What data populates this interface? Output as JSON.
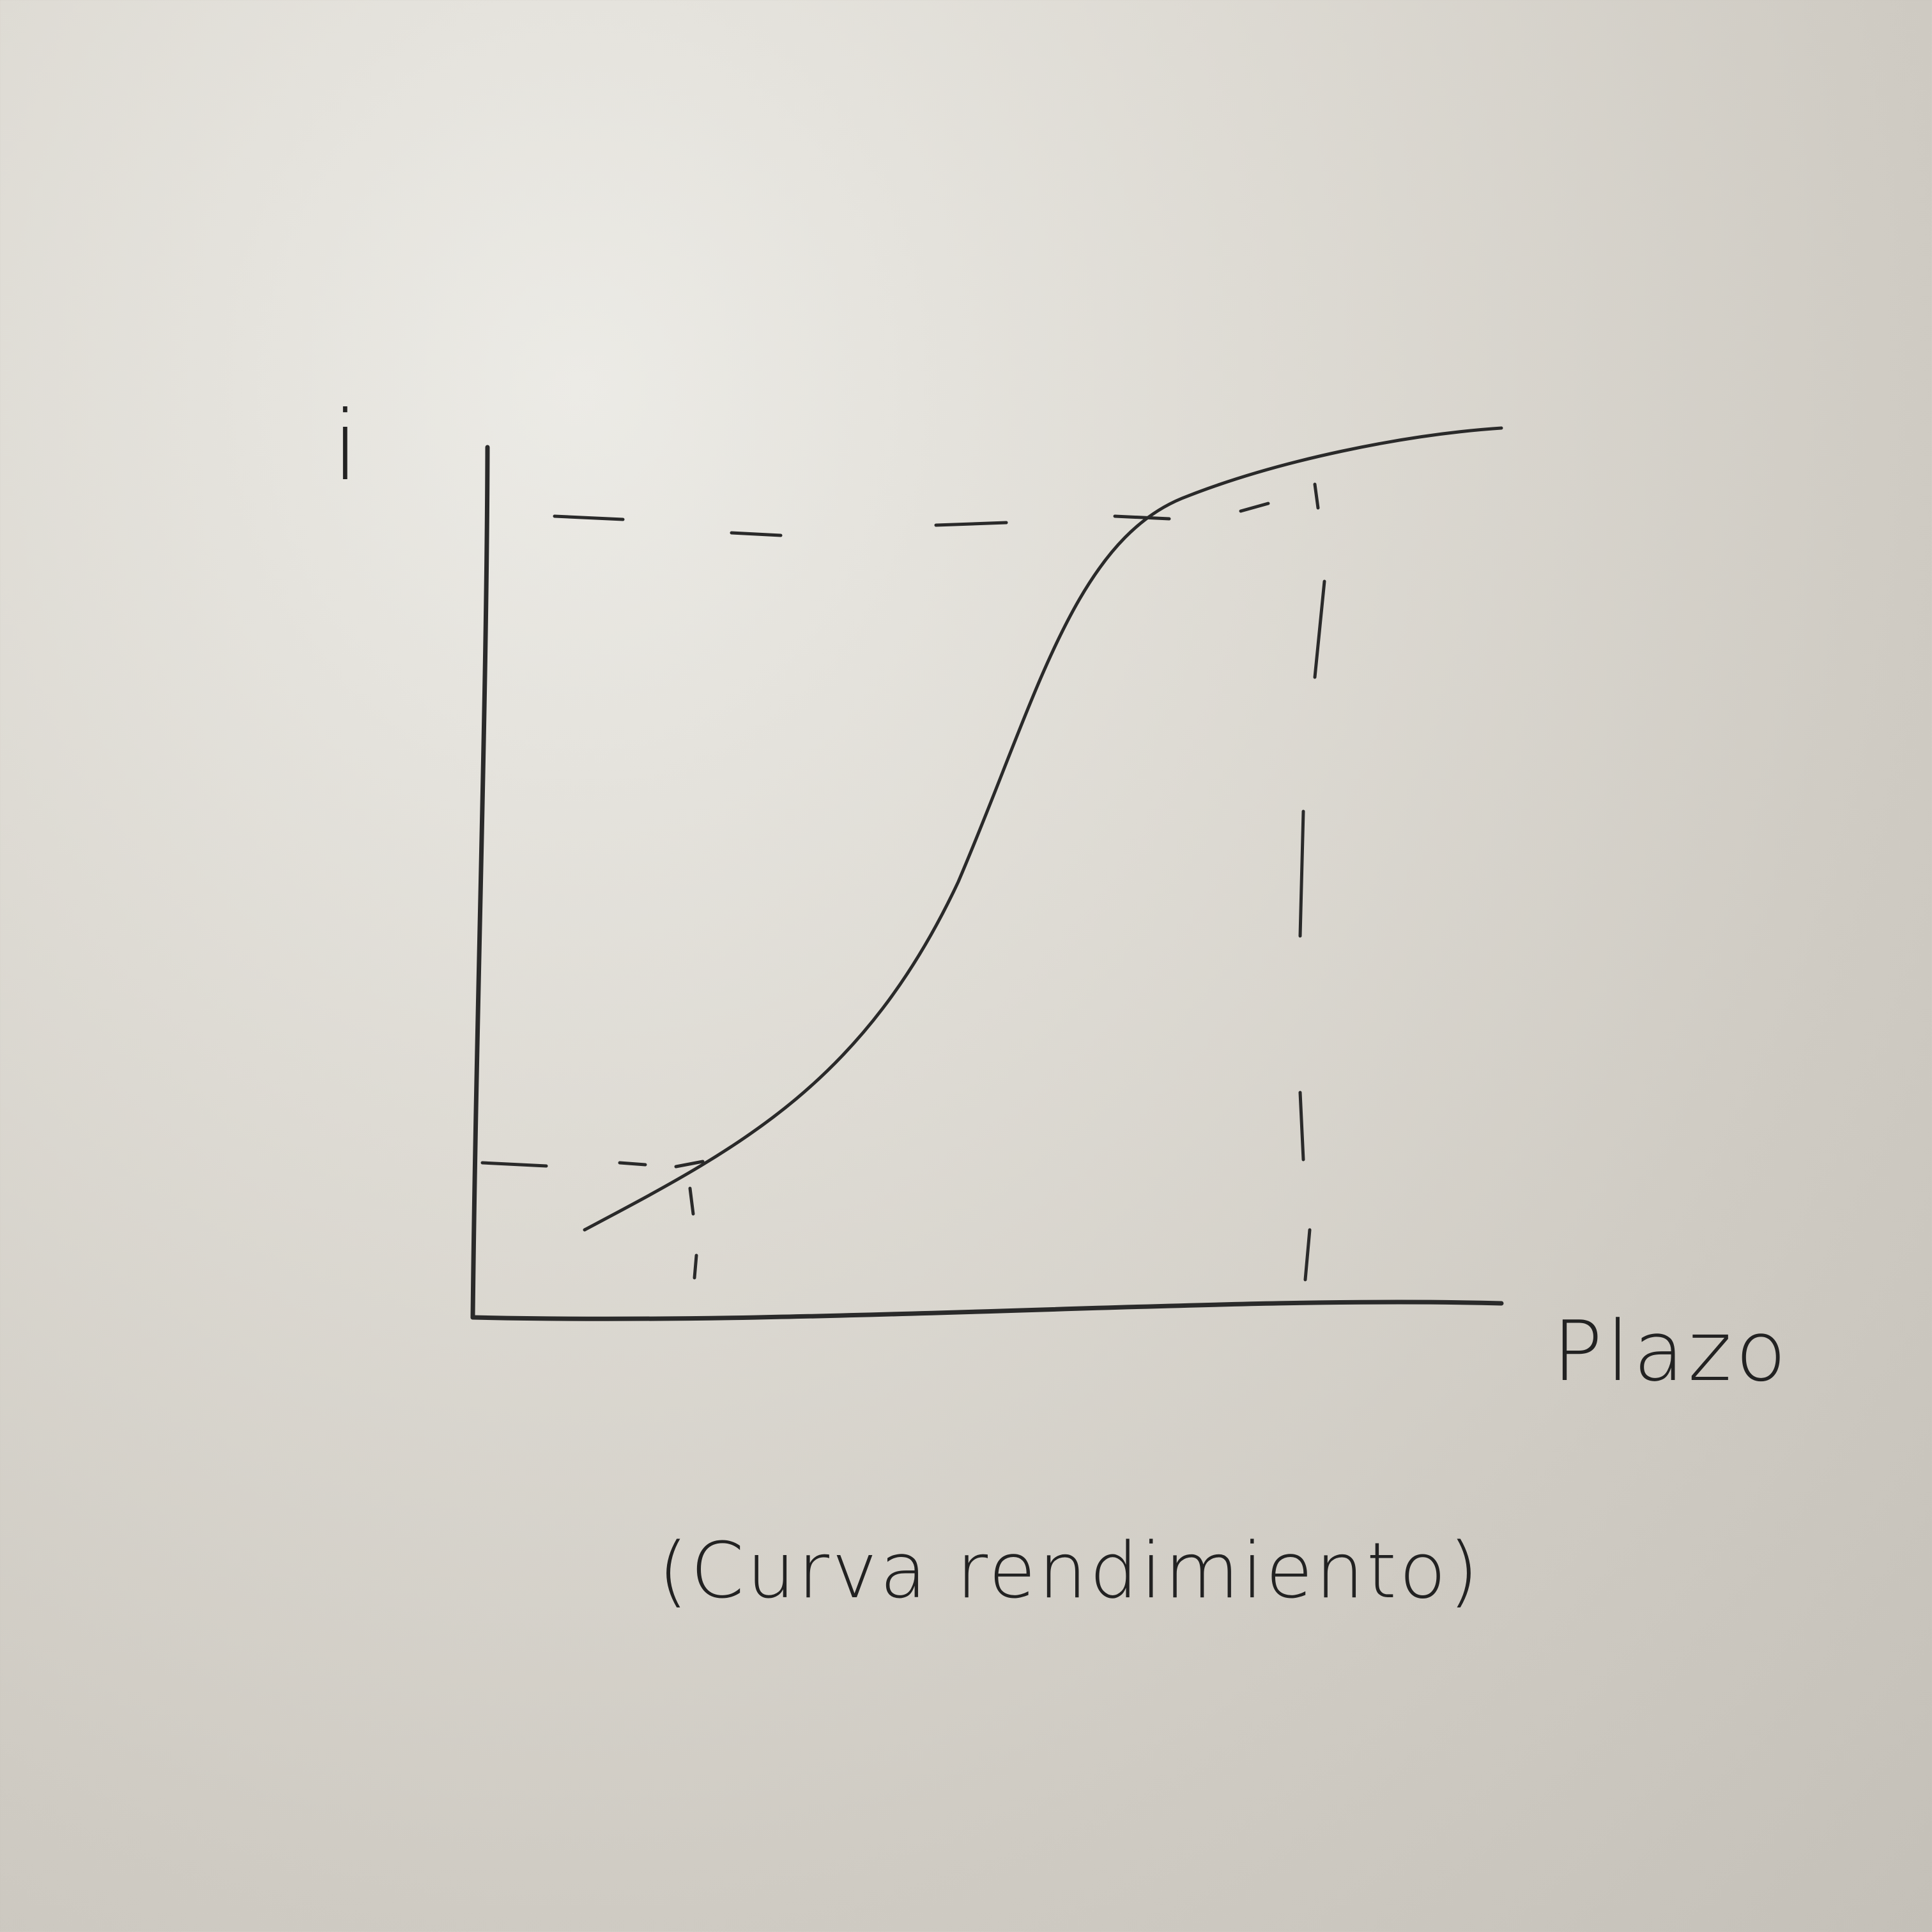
{
  "diagram": {
    "y_axis_label": "i",
    "x_axis_label": "Plazo",
    "caption": "(Curva rendimiento)",
    "ink_color": "#2a2a2a"
  }
}
